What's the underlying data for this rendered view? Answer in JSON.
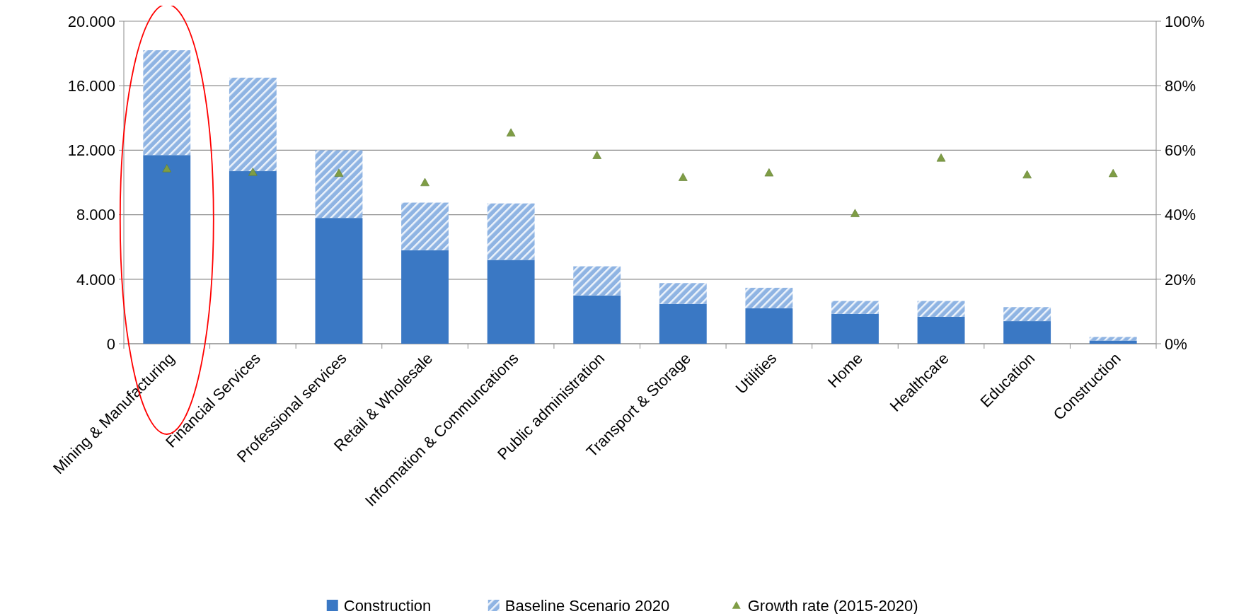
{
  "chart_data": {
    "type": "bar",
    "stacked": true,
    "categories": [
      "Mining & Manufacturing",
      "Financial Services",
      "Professional services",
      "Retail & Wholesale",
      "Information & Communcations",
      "Public administration",
      "Transport & Storage",
      "Utilities",
      "Home",
      "Healthcare",
      "Education",
      "Construction"
    ],
    "series": [
      {
        "name": "Construction",
        "color": "#3a78c4",
        "values": [
          11700,
          10700,
          7800,
          5800,
          5200,
          3000,
          2470,
          2200,
          1850,
          1670,
          1400,
          200
        ]
      },
      {
        "name": "Baseline Scenario 2020",
        "color": "#8fb4e3",
        "values": [
          6500,
          5800,
          4200,
          2950,
          3500,
          1800,
          1290,
          1270,
          800,
          980,
          870,
          220
        ]
      },
      {
        "name": "Growth rate (2015-2020)",
        "type": "scatter",
        "axis": "y2",
        "marker": "triangle",
        "color": "#7f9d45",
        "values": [
          54.3,
          53.2,
          52.9,
          50.0,
          65.4,
          58.4,
          51.6,
          53.0,
          40.4,
          57.6,
          52.4,
          52.8
        ]
      }
    ],
    "ylim": [
      0,
      20000
    ],
    "yticks": [
      {
        "value": 0,
        "label": "0"
      },
      {
        "value": 4000,
        "label": "4.000"
      },
      {
        "value": 8000,
        "label": "8.000"
      },
      {
        "value": 12000,
        "label": "12.000"
      },
      {
        "value": 16000,
        "label": "16.000"
      },
      {
        "value": 20000,
        "label": "20.000"
      }
    ],
    "y2lim": [
      0,
      100
    ],
    "y2ticks": [
      {
        "value": 0,
        "label": "0%"
      },
      {
        "value": 20,
        "label": "20%"
      },
      {
        "value": 40,
        "label": "40%"
      },
      {
        "value": 60,
        "label": "60%"
      },
      {
        "value": 80,
        "label": "80%"
      },
      {
        "value": 100,
        "label": "100%"
      }
    ],
    "grid": "y",
    "legend": "bottom"
  }
}
